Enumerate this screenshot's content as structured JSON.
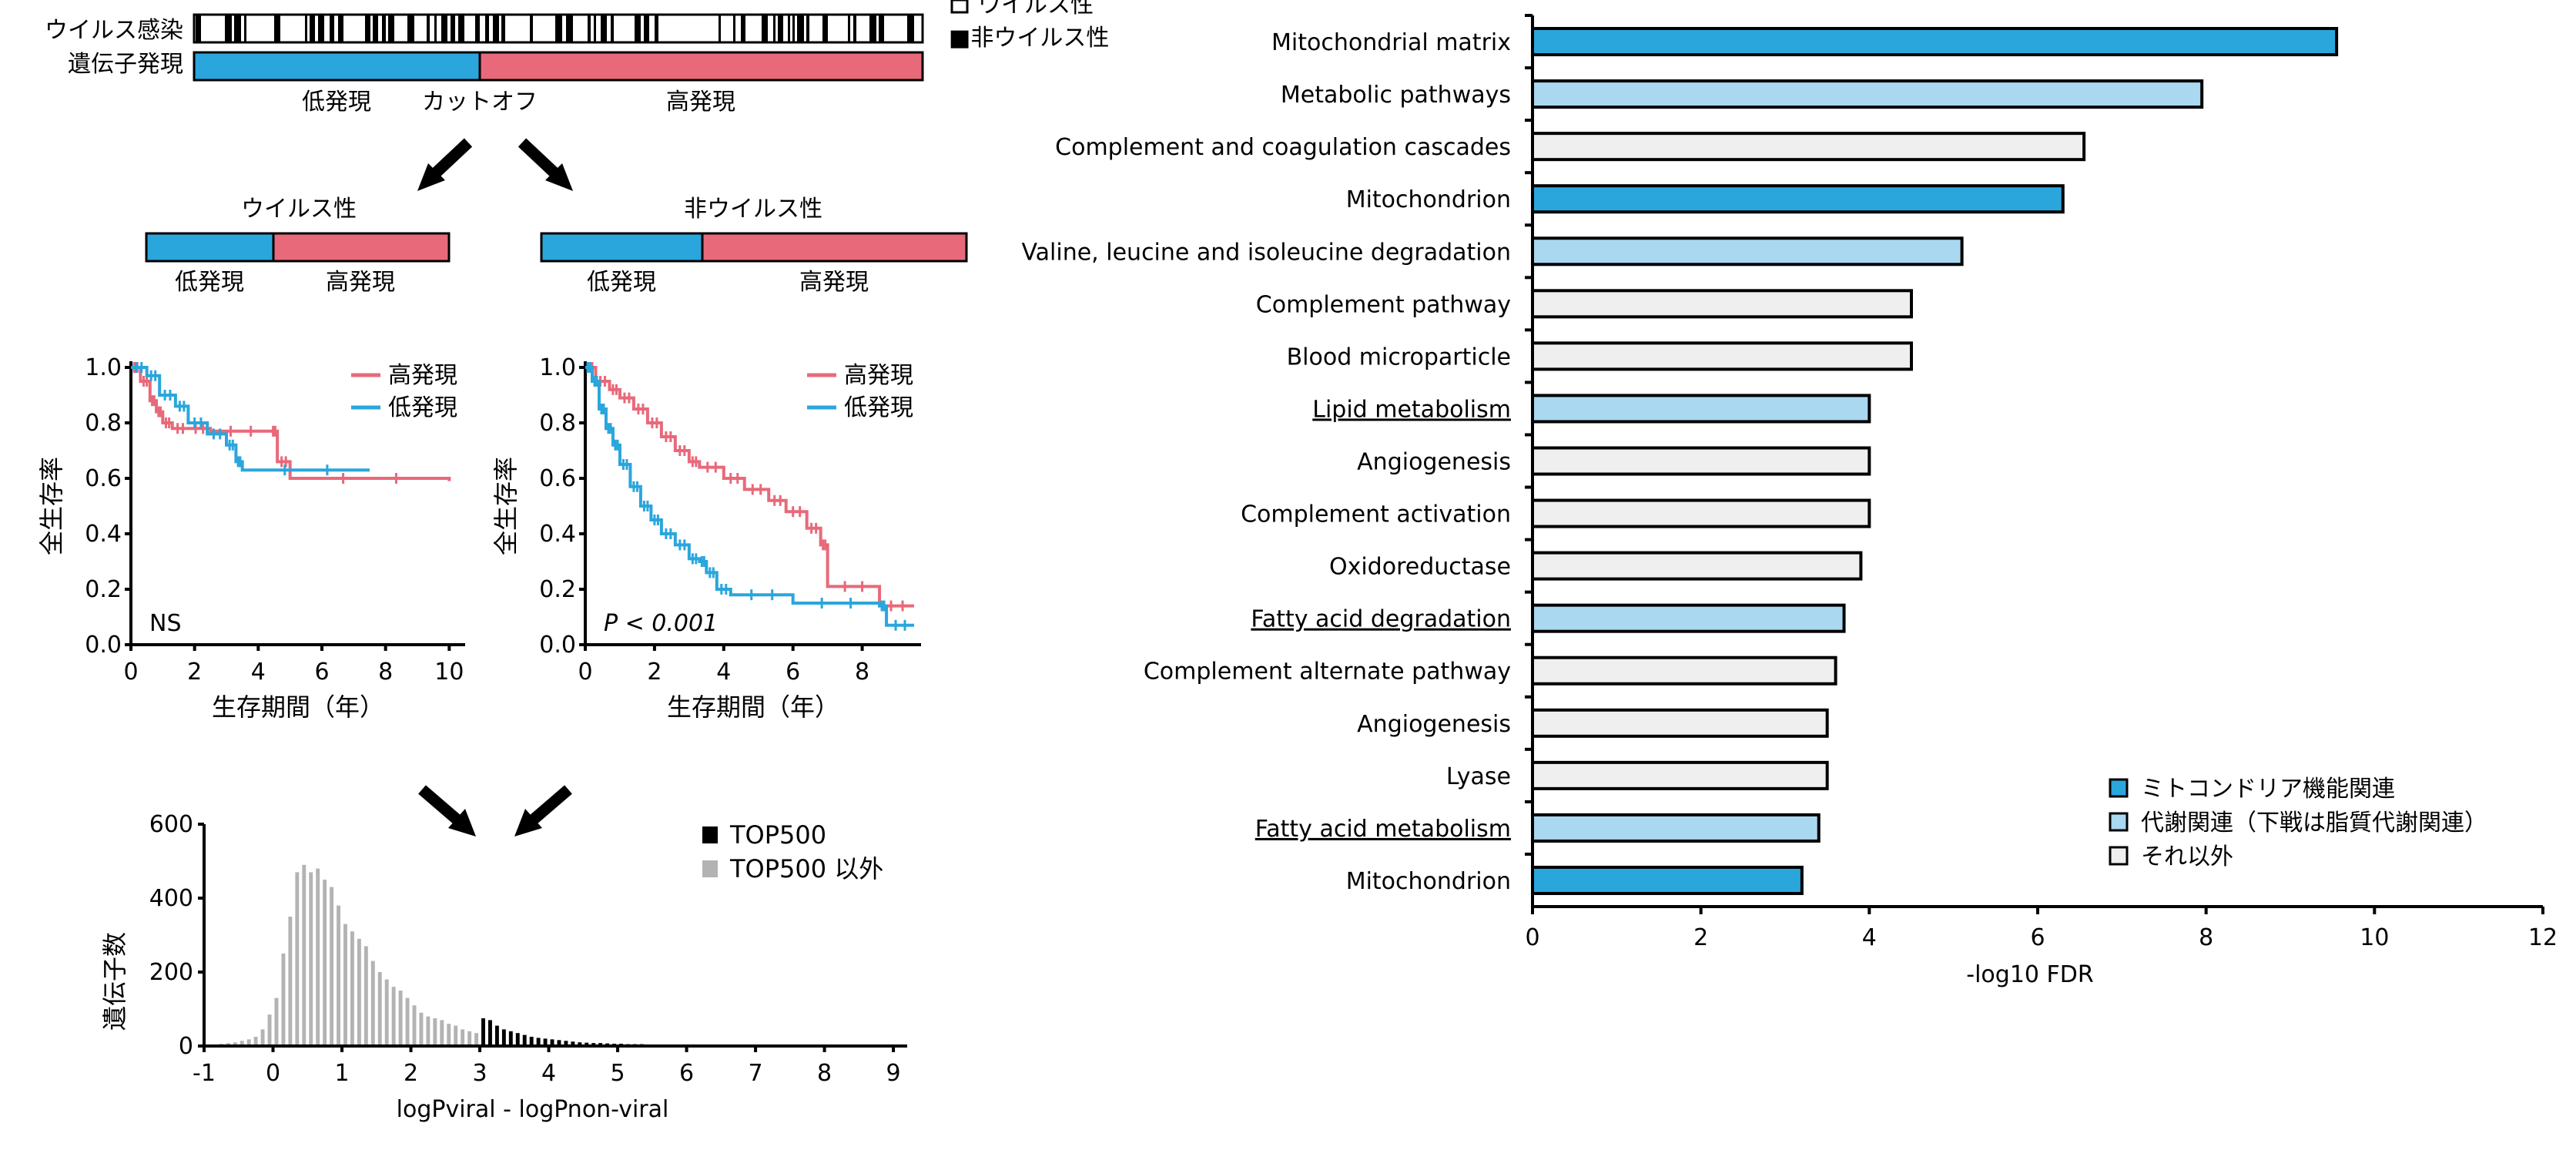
{
  "schema": {
    "virus_label": "ウイルス感染",
    "expr_label": "遺伝子発現",
    "legend_viral": "ウイルス性",
    "legend_nonviral": "■非ウイルス性",
    "low": "低発現",
    "cutoff": "カットオフ",
    "high": "高発現",
    "viral_title": "ウイルス性",
    "nonviral_title": "非ウイルス性",
    "color_low": "#2aa6dc",
    "color_high": "#e8697a"
  },
  "chart_data": [
    {
      "type": "line",
      "title": "",
      "xlabel": "生存期間（年）",
      "ylabel": "全生存率",
      "xticks": [
        "0",
        "2",
        "4",
        "6",
        "8",
        "10"
      ],
      "yticks": [
        "0.0",
        "0.2",
        "0.4",
        "0.6",
        "0.8",
        "1.0"
      ],
      "xlim": [
        0,
        10.5
      ],
      "ylim": [
        0,
        1.0
      ],
      "annotation": "NS",
      "series": [
        {
          "name": "高発現",
          "color": "#e8697a",
          "steps": [
            [
              0,
              1.0
            ],
            [
              0.3,
              0.95
            ],
            [
              0.6,
              0.88
            ],
            [
              0.8,
              0.84
            ],
            [
              1.0,
              0.8
            ],
            [
              1.3,
              0.78
            ],
            [
              1.8,
              0.78
            ],
            [
              2.5,
              0.77
            ],
            [
              4.4,
              0.77
            ],
            [
              4.6,
              0.66
            ],
            [
              5.0,
              0.6
            ],
            [
              10.0,
              0.59
            ]
          ]
        },
        {
          "name": "低発現",
          "color": "#2aa6dc",
          "steps": [
            [
              0,
              1.0
            ],
            [
              0.5,
              0.97
            ],
            [
              0.9,
              0.9
            ],
            [
              1.4,
              0.86
            ],
            [
              1.8,
              0.8
            ],
            [
              2.4,
              0.76
            ],
            [
              3.0,
              0.72
            ],
            [
              3.3,
              0.66
            ],
            [
              3.5,
              0.63
            ],
            [
              7.5,
              0.63
            ]
          ]
        }
      ]
    },
    {
      "type": "line",
      "title": "",
      "xlabel": "生存期間（年）",
      "ylabel": "全生存率",
      "xticks": [
        "0",
        "2",
        "4",
        "6",
        "8"
      ],
      "yticks": [
        "0.0",
        "0.2",
        "0.4",
        "0.6",
        "0.8",
        "1.0"
      ],
      "xlim": [
        0,
        9.7
      ],
      "ylim": [
        0,
        1.0
      ],
      "annotation": "P < 0.001",
      "series": [
        {
          "name": "高発現",
          "color": "#e8697a",
          "steps": [
            [
              0,
              1.0
            ],
            [
              0.3,
              0.95
            ],
            [
              0.7,
              0.92
            ],
            [
              1.0,
              0.89
            ],
            [
              1.4,
              0.85
            ],
            [
              1.8,
              0.8
            ],
            [
              2.2,
              0.75
            ],
            [
              2.6,
              0.7
            ],
            [
              3.0,
              0.66
            ],
            [
              3.3,
              0.64
            ],
            [
              4.0,
              0.6
            ],
            [
              4.6,
              0.56
            ],
            [
              5.3,
              0.52
            ],
            [
              5.8,
              0.48
            ],
            [
              6.4,
              0.42
            ],
            [
              6.8,
              0.36
            ],
            [
              7.0,
              0.21
            ],
            [
              8.5,
              0.14
            ],
            [
              9.5,
              0.14
            ]
          ]
        },
        {
          "name": "低発現",
          "color": "#2aa6dc",
          "steps": [
            [
              0,
              1.0
            ],
            [
              0.2,
              0.95
            ],
            [
              0.4,
              0.85
            ],
            [
              0.6,
              0.78
            ],
            [
              0.8,
              0.72
            ],
            [
              1.0,
              0.65
            ],
            [
              1.3,
              0.57
            ],
            [
              1.6,
              0.5
            ],
            [
              1.9,
              0.45
            ],
            [
              2.2,
              0.4
            ],
            [
              2.6,
              0.36
            ],
            [
              3.0,
              0.31
            ],
            [
              3.3,
              0.3
            ],
            [
              3.5,
              0.26
            ],
            [
              3.8,
              0.2
            ],
            [
              4.2,
              0.18
            ],
            [
              6.0,
              0.15
            ],
            [
              8.5,
              0.14
            ],
            [
              8.7,
              0.07
            ],
            [
              9.5,
              0.07
            ]
          ]
        }
      ]
    },
    {
      "type": "bar",
      "title": "",
      "xlabel": "logPviral - logPnon-viral",
      "ylabel": "遺伝子数",
      "xticks": [
        "-1",
        "0",
        "1",
        "2",
        "3",
        "4",
        "5",
        "6",
        "7",
        "8",
        "9"
      ],
      "yticks": [
        "0",
        "200",
        "400",
        "600"
      ],
      "xlim": [
        -1,
        9.2
      ],
      "ylim": [
        0,
        600
      ],
      "legend": [
        "TOP500",
        "TOP500 以外"
      ],
      "colors": {
        "top": "#000000",
        "other": "#b3b3b3"
      },
      "top_threshold": 3.0,
      "bins_x": [
        -0.95,
        -0.85,
        -0.75,
        -0.65,
        -0.55,
        -0.45,
        -0.35,
        -0.25,
        -0.15,
        -0.05,
        0.05,
        0.15,
        0.25,
        0.35,
        0.45,
        0.55,
        0.65,
        0.75,
        0.85,
        0.95,
        1.05,
        1.15,
        1.25,
        1.35,
        1.45,
        1.55,
        1.65,
        1.75,
        1.85,
        1.95,
        2.05,
        2.15,
        2.25,
        2.35,
        2.45,
        2.55,
        2.65,
        2.75,
        2.85,
        2.95,
        3.05,
        3.15,
        3.25,
        3.35,
        3.45,
        3.55,
        3.65,
        3.75,
        3.85,
        3.95,
        4.05,
        4.15,
        4.25,
        4.35,
        4.45,
        4.55,
        4.65,
        4.75,
        4.85,
        4.95,
        5.05,
        5.15,
        5.25,
        5.35,
        5.45,
        5.55,
        5.65,
        5.75,
        5.85,
        5.95,
        6.05,
        6.15,
        6.25,
        6.35,
        6.45,
        6.55,
        6.65,
        6.75,
        6.85,
        6.95,
        7.05,
        7.25,
        7.45,
        7.65,
        7.85,
        8.05,
        8.25,
        8.45,
        8.65,
        8.85
      ],
      "bins_y": [
        3,
        4,
        6,
        8,
        10,
        14,
        18,
        25,
        45,
        85,
        130,
        250,
        350,
        470,
        490,
        470,
        480,
        450,
        430,
        380,
        330,
        310,
        290,
        270,
        230,
        200,
        180,
        160,
        150,
        130,
        110,
        90,
        80,
        75,
        70,
        60,
        55,
        45,
        40,
        35,
        75,
        70,
        55,
        45,
        40,
        35,
        30,
        25,
        22,
        20,
        18,
        16,
        14,
        12,
        10,
        9,
        8,
        8,
        7,
        6,
        6,
        5,
        5,
        5,
        4,
        4,
        4,
        3,
        3,
        3,
        3,
        3,
        3,
        2,
        2,
        2,
        2,
        2,
        2,
        2,
        2,
        2,
        2,
        2,
        2,
        2,
        2,
        2,
        2,
        2
      ]
    },
    {
      "type": "bar",
      "title": "",
      "xlabel": "-log10 FDR",
      "xticks": [
        "0",
        "2",
        "4",
        "6",
        "8",
        "10",
        "12"
      ],
      "xlim": [
        0,
        12
      ],
      "legend": [
        "ミトコンドリア機能関連",
        "代謝関連（下戦は脂質代謝関連）",
        "それ以外"
      ],
      "colors": {
        "mito": "#2aa6dc",
        "metab": "#a9d8f0",
        "other": "#efefef"
      },
      "categories": [
        "Mitochondrial matrix",
        "Metabolic pathways",
        "Complement and coagulation cascades",
        "Mitochondrion",
        "Valine, leucine and isoleucine degradation",
        "Complement pathway",
        "Blood microparticle",
        "Lipid metabolism",
        "Angiogenesis",
        "Complement activation",
        "Oxidoreductase",
        "Fatty acid degradation",
        "Complement alternate pathway",
        "Angiogenesis",
        "Lyase",
        "Fatty acid metabolism",
        "Mitochondrion"
      ],
      "values": [
        9.55,
        7.95,
        6.55,
        6.3,
        5.1,
        4.5,
        4.5,
        4.0,
        4.0,
        4.0,
        3.9,
        3.7,
        3.6,
        3.5,
        3.5,
        3.4,
        3.2
      ],
      "groups": [
        "mito",
        "metab",
        "other",
        "mito",
        "metab",
        "other",
        "other",
        "metab",
        "other",
        "other",
        "other",
        "metab",
        "other",
        "other",
        "other",
        "metab",
        "mito"
      ],
      "underlined": [
        false,
        false,
        false,
        false,
        false,
        false,
        false,
        true,
        false,
        false,
        false,
        true,
        false,
        false,
        false,
        true,
        false
      ]
    }
  ]
}
